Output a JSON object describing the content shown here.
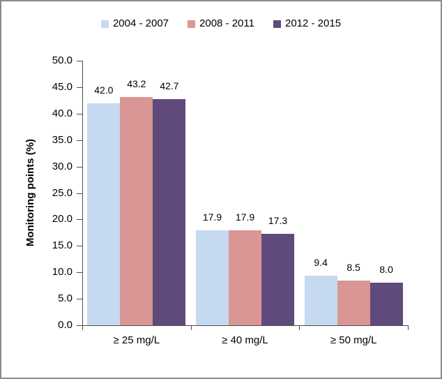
{
  "chart_data": {
    "type": "bar",
    "title": "",
    "categories": [
      "≥ 25 mg/L",
      "≥ 40 mg/L",
      "≥ 50 mg/L"
    ],
    "series": [
      {
        "name": "2004 - 2007",
        "color": "#c5d9f1",
        "values": [
          42.0,
          17.9,
          9.4
        ]
      },
      {
        "name": "2008 - 2011",
        "color": "#d99694",
        "values": [
          43.2,
          17.9,
          8.5
        ]
      },
      {
        "name": "2012 - 2015",
        "color": "#604a7b",
        "values": [
          42.7,
          17.3,
          8.0
        ]
      }
    ],
    "xlabel": "",
    "ylabel": "Monitoring points (%)",
    "ylim": [
      0,
      50
    ],
    "ytick_step": 5,
    "ytick_labels": [
      "0.0",
      "5.0",
      "10.0",
      "15.0",
      "20.0",
      "25.0",
      "30.0",
      "35.0",
      "40.0",
      "45.0",
      "50.0"
    ],
    "data_label_decimals": 1,
    "grid": false,
    "legend_position": "top",
    "axis_color": "#4d4d4d",
    "text_color": "#000000",
    "frame_border_color": "#8a8a8a"
  }
}
